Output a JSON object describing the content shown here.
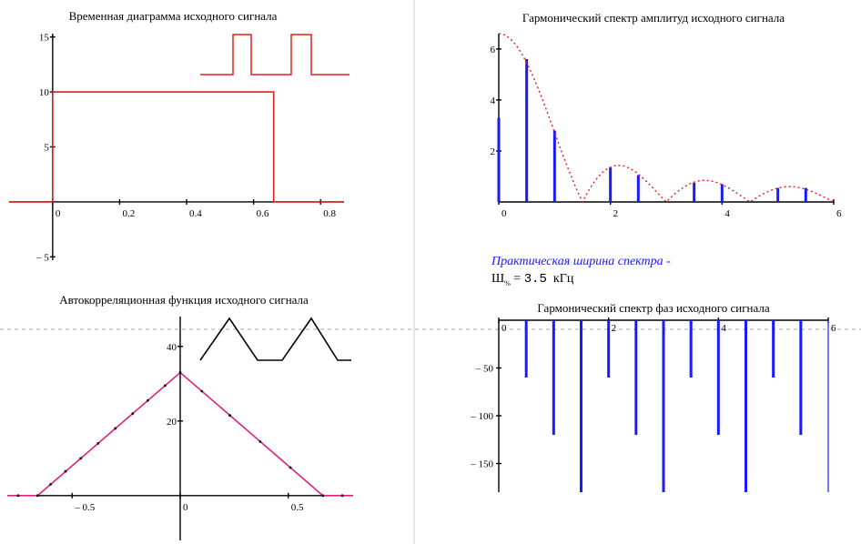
{
  "colors": {
    "signal": "#e0201e",
    "spectrum": "#1a1aff",
    "envelope": "#e0201e",
    "autocorr": "#e0207f",
    "black": "#000000",
    "guide": "#aaaaaa"
  },
  "width_note": {
    "label": "Практическая ширина спектра  -",
    "symbol": "Ш",
    "subscript": "%",
    "equals": "=",
    "value": "3.5",
    "unit": "кГц"
  },
  "chart_data": [
    {
      "id": "time",
      "type": "line",
      "title": "Временная диаграмма исходного сигнала",
      "xlim": [
        -0.13,
        0.87
      ],
      "ylim": [
        -5.3,
        15.3
      ],
      "xticks": [
        0,
        0.2,
        0.4,
        0.6,
        0.8
      ],
      "xtick_labels": [
        "0",
        "0.2",
        "0.4",
        "0.6",
        "0.8"
      ],
      "yticks": [
        15,
        10,
        5,
        -5
      ],
      "ytick_labels": [
        "15",
        "10",
        "5",
        "– 5"
      ],
      "series": [
        {
          "name": "signal",
          "points": [
            [
              -0.13,
              0
            ],
            [
              0,
              0
            ],
            [
              0,
              10
            ],
            [
              0.66,
              10
            ],
            [
              0.66,
              0
            ],
            [
              0.87,
              0
            ]
          ]
        }
      ]
    },
    {
      "id": "amp",
      "type": "bar",
      "title": "Гармонический спектр амплитуд исходного сигнала",
      "xlim": [
        0,
        6
      ],
      "ylim": [
        0,
        6.6
      ],
      "xticks": [
        0,
        2,
        4,
        6
      ],
      "xtick_labels": [
        "0",
        "2",
        "4",
        "6"
      ],
      "yticks": [
        6,
        4,
        2
      ],
      "ytick_labels": [
        "6",
        "4",
        "2"
      ],
      "x": [
        0,
        0.5,
        1.0,
        1.5,
        2.0,
        2.5,
        3.0,
        3.5,
        4.0,
        4.5,
        5.0,
        5.5,
        6.0
      ],
      "values": [
        3.3,
        5.6,
        2.8,
        0,
        1.35,
        1.05,
        0,
        0.75,
        0.7,
        0,
        0.55,
        0.55,
        0
      ],
      "envelope": {
        "name": "spectral envelope",
        "peak": 6.6,
        "zeros_every": 1.5
      }
    },
    {
      "id": "autocorr",
      "type": "line",
      "title": "Автокорреляционная функция исходного сигнала",
      "xlim": [
        -0.8,
        0.8
      ],
      "ylim": [
        -12,
        48
      ],
      "xticks": [
        -0.5,
        0,
        0.5
      ],
      "xtick_labels": [
        "– 0.5",
        "0",
        "0.5"
      ],
      "yticks": [
        40,
        20
      ],
      "ytick_labels": [
        "40",
        "20"
      ],
      "series": [
        {
          "name": "autocorrelation",
          "points": [
            [
              -0.8,
              0
            ],
            [
              -0.66,
              0
            ],
            [
              0,
              33
            ],
            [
              0.66,
              0
            ],
            [
              0.8,
              0
            ]
          ]
        }
      ],
      "marker_x": [
        -0.75,
        -0.66,
        -0.6,
        -0.53,
        -0.46,
        -0.38,
        -0.3,
        -0.22,
        -0.15,
        -0.07,
        0,
        0.1,
        0.23,
        0.37,
        0.51,
        0.66,
        0.75
      ]
    },
    {
      "id": "phase",
      "type": "bar",
      "title": "Гармонический спектр фаз исходного сигнала",
      "xlim": [
        0,
        6
      ],
      "ylim": [
        -180,
        0
      ],
      "xticks": [
        0,
        2,
        4,
        6
      ],
      "xtick_labels": [
        "0",
        "2",
        "4",
        "6"
      ],
      "yticks": [
        -50,
        -100,
        -150
      ],
      "ytick_labels": [
        "– 50",
        "– 100",
        "– 150"
      ],
      "x": [
        0.5,
        1.0,
        1.5,
        2.0,
        2.5,
        3.0,
        3.5,
        4.0,
        4.5,
        5.0,
        5.5,
        6.0
      ],
      "values": [
        -60,
        -120,
        -180,
        -60,
        -120,
        -180,
        -60,
        -120,
        -180,
        -60,
        -120,
        -180
      ]
    }
  ]
}
